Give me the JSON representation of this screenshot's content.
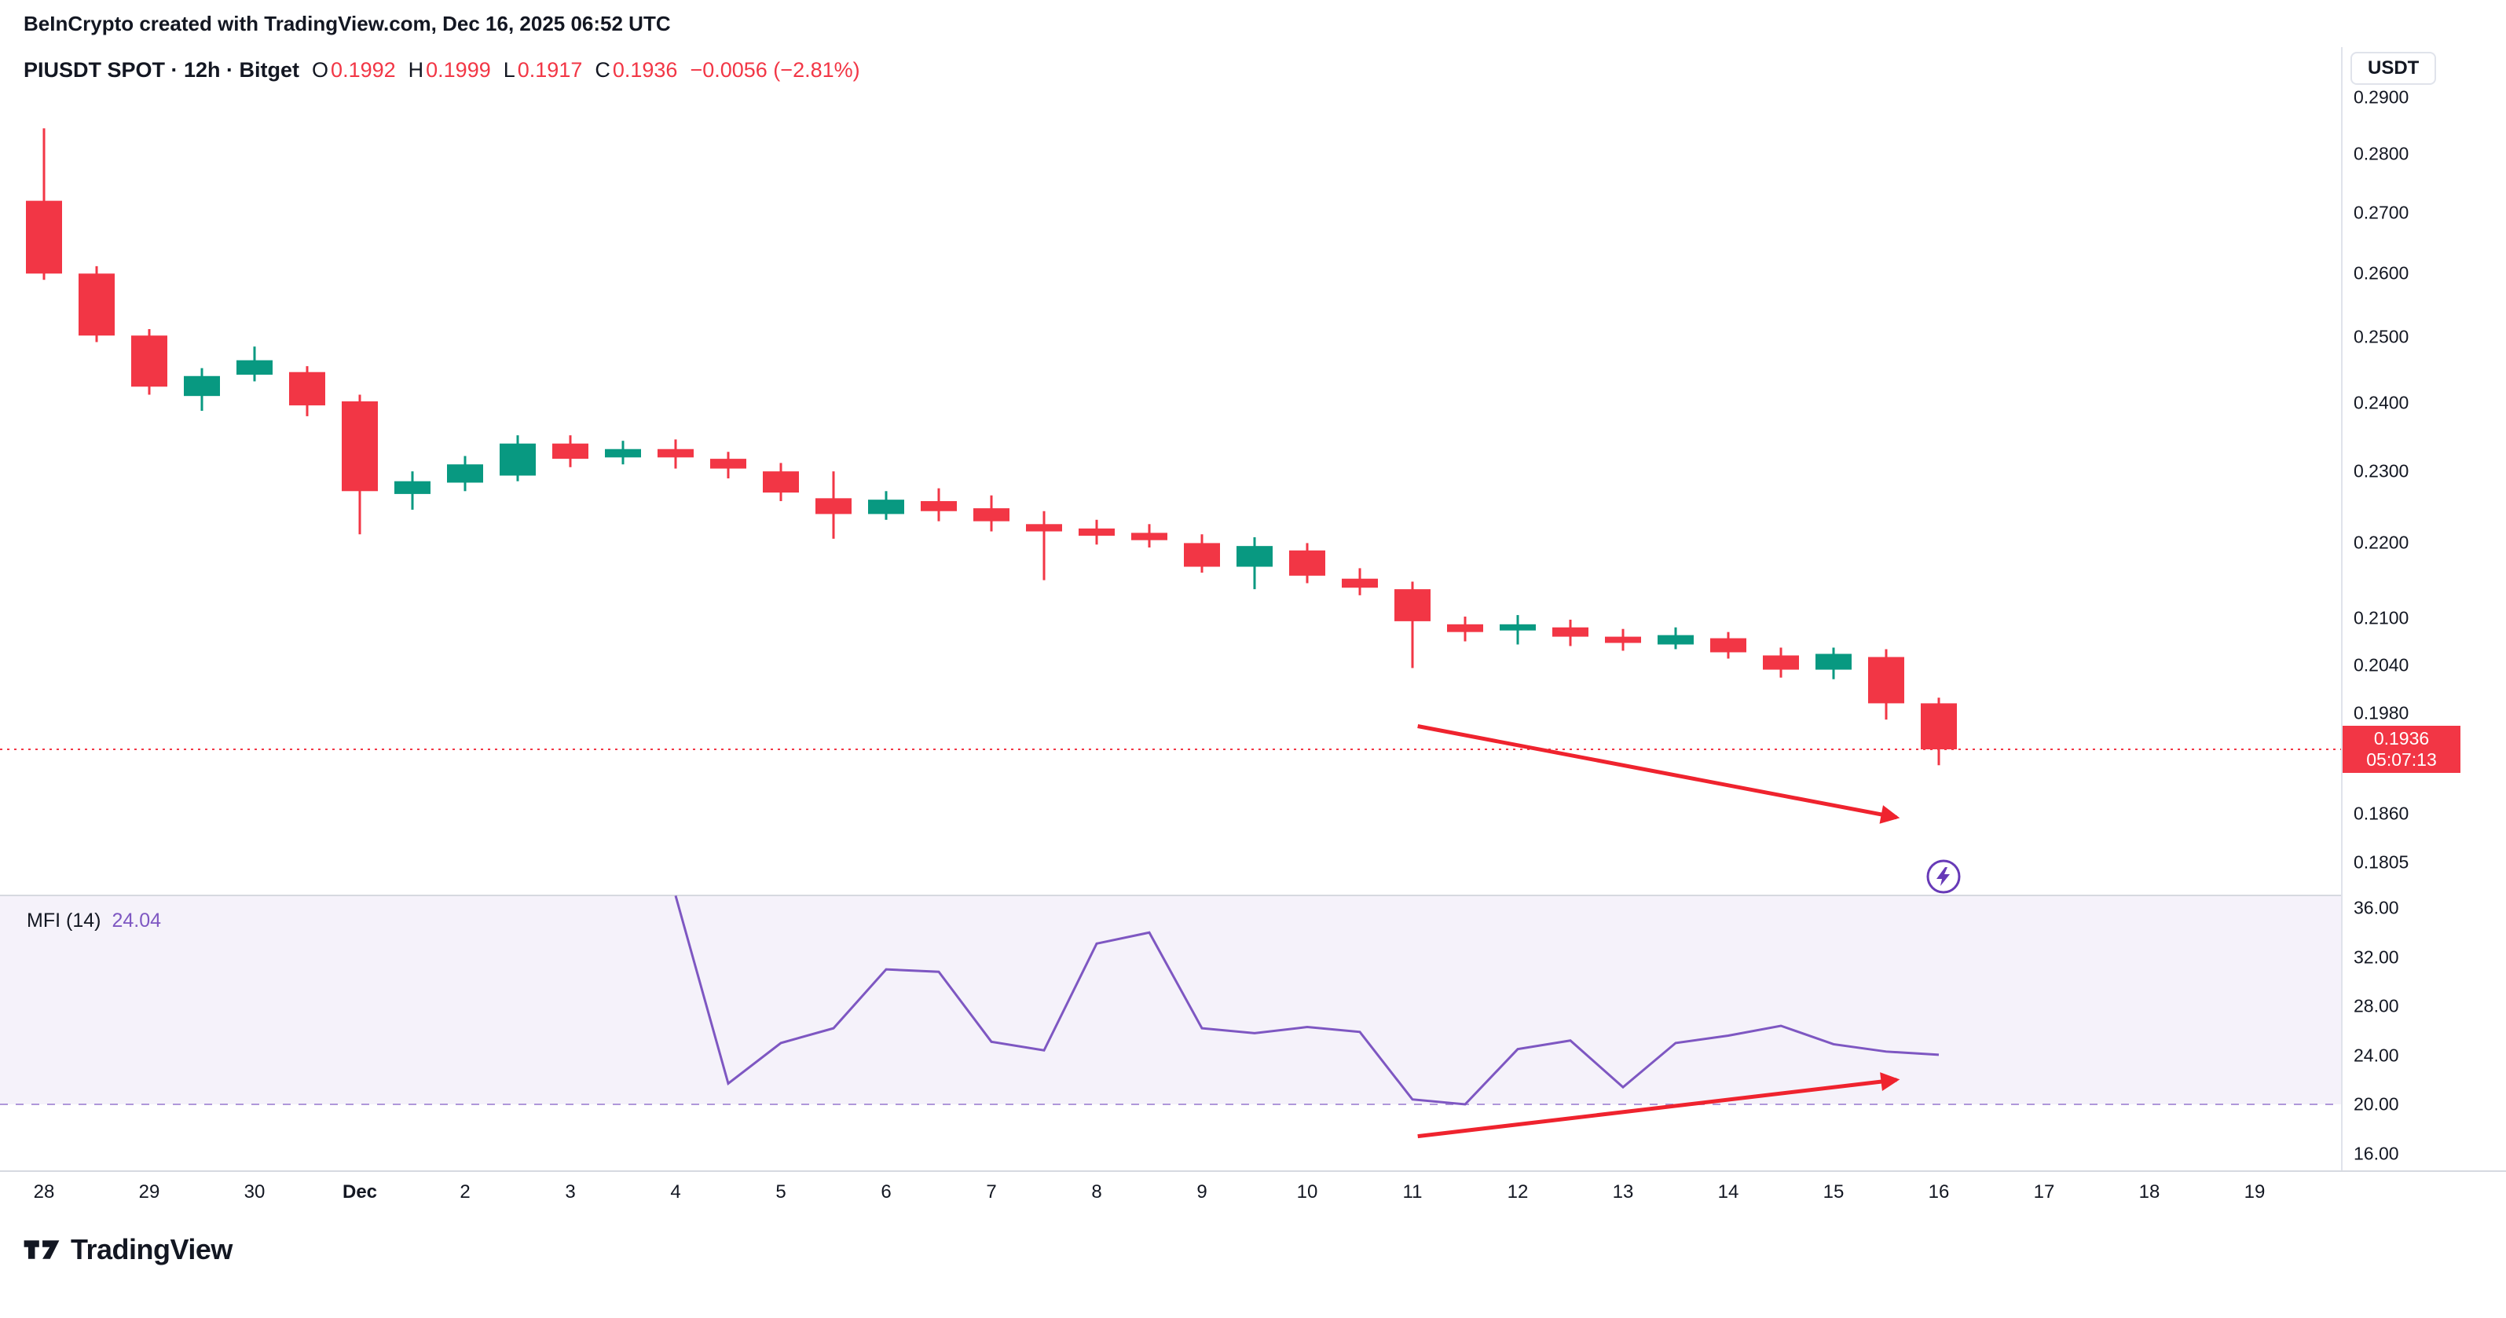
{
  "attribution": {
    "text": "BeInCrypto created with TradingView.com, Dec 16, 2025 06:52 UTC"
  },
  "legend": {
    "symbol": "PIUSDT SPOT · 12h · Bitget",
    "o_label": "O",
    "o": "0.1992",
    "h_label": "H",
    "h": "0.1999",
    "l_label": "L",
    "l": "0.1917",
    "c_label": "C",
    "c": "0.1936",
    "change": "−0.0056 (−2.81%)"
  },
  "mfi_legend": {
    "name": "MFI (14)",
    "value": "24.04"
  },
  "price_axis": {
    "unit": "USDT",
    "current_price": "0.1936",
    "countdown": "05:07:13"
  },
  "footer": {
    "logo_text": "TradingView"
  },
  "colors": {
    "up": "#089981",
    "down": "#f23645",
    "mfi_line": "#7e57c2",
    "mfi_band": "rgba(126,87,194,0.08)",
    "oversold_line": "#7e57c2",
    "arrow": "#ef232e",
    "price_line": "#f23645",
    "divider": "#d6d9e0"
  },
  "chart_data": {
    "type": "candlestick",
    "symbol": "PIUSDT",
    "exchange": "Bitget",
    "interval": "12h",
    "y_axis": {
      "type": "log",
      "ticks": [
        "0.2900",
        "0.2800",
        "0.2700",
        "0.2600",
        "0.2500",
        "0.2400",
        "0.2300",
        "0.2200",
        "0.2100",
        "0.2040",
        "0.1980",
        "0.1860",
        "0.1805"
      ]
    },
    "x_labels": [
      "28",
      "29",
      "30",
      "Dec",
      "2",
      "3",
      "4",
      "5",
      "6",
      "7",
      "8",
      "9",
      "10",
      "11",
      "12",
      "13",
      "14",
      "15",
      "16",
      "17",
      "18",
      "19"
    ],
    "bold_x_label": "Dec",
    "current_price": 0.1936,
    "candles": [
      {
        "t": "Nov 28 AM",
        "o": 0.272,
        "h": 0.2845,
        "l": 0.259,
        "c": 0.26
      },
      {
        "t": "Nov 28 PM",
        "o": 0.26,
        "h": 0.2612,
        "l": 0.2492,
        "c": 0.2502
      },
      {
        "t": "Nov 29 AM",
        "o": 0.2502,
        "h": 0.2512,
        "l": 0.2412,
        "c": 0.2424
      },
      {
        "t": "Nov 29 PM",
        "o": 0.241,
        "h": 0.2452,
        "l": 0.2388,
        "c": 0.244
      },
      {
        "t": "Nov 30 AM",
        "o": 0.2442,
        "h": 0.2485,
        "l": 0.2432,
        "c": 0.2464
      },
      {
        "t": "Nov 30 PM",
        "o": 0.2446,
        "h": 0.2455,
        "l": 0.238,
        "c": 0.2396
      },
      {
        "t": "Dec 1 AM",
        "o": 0.2402,
        "h": 0.2412,
        "l": 0.2212,
        "c": 0.2272
      },
      {
        "t": "Dec 1 PM",
        "o": 0.2268,
        "h": 0.23,
        "l": 0.2246,
        "c": 0.2286
      },
      {
        "t": "Dec 2 AM",
        "o": 0.2284,
        "h": 0.2322,
        "l": 0.2272,
        "c": 0.231
      },
      {
        "t": "Dec 2 PM",
        "o": 0.2294,
        "h": 0.2352,
        "l": 0.2286,
        "c": 0.234
      },
      {
        "t": "Dec 3 AM",
        "o": 0.234,
        "h": 0.2352,
        "l": 0.2306,
        "c": 0.2318
      },
      {
        "t": "Dec 3 PM",
        "o": 0.232,
        "h": 0.2344,
        "l": 0.231,
        "c": 0.2332
      },
      {
        "t": "Dec 4 AM",
        "o": 0.2332,
        "h": 0.2346,
        "l": 0.2304,
        "c": 0.232
      },
      {
        "t": "Dec 4 PM",
        "o": 0.2318,
        "h": 0.2328,
        "l": 0.229,
        "c": 0.2304
      },
      {
        "t": "Dec 5 AM",
        "o": 0.23,
        "h": 0.2312,
        "l": 0.2258,
        "c": 0.227
      },
      {
        "t": "Dec 5 PM",
        "o": 0.2262,
        "h": 0.23,
        "l": 0.2206,
        "c": 0.224
      },
      {
        "t": "Dec 6 AM",
        "o": 0.224,
        "h": 0.2272,
        "l": 0.2232,
        "c": 0.226
      },
      {
        "t": "Dec 6 PM",
        "o": 0.2258,
        "h": 0.2276,
        "l": 0.223,
        "c": 0.2244
      },
      {
        "t": "Dec 7 AM",
        "o": 0.2248,
        "h": 0.2266,
        "l": 0.2216,
        "c": 0.223
      },
      {
        "t": "Dec 7 PM",
        "o": 0.2226,
        "h": 0.2244,
        "l": 0.215,
        "c": 0.2216
      },
      {
        "t": "Dec 8 AM",
        "o": 0.222,
        "h": 0.2232,
        "l": 0.2198,
        "c": 0.221
      },
      {
        "t": "Dec 8 PM",
        "o": 0.2214,
        "h": 0.2226,
        "l": 0.2194,
        "c": 0.2204
      },
      {
        "t": "Dec 9 AM",
        "o": 0.22,
        "h": 0.2212,
        "l": 0.216,
        "c": 0.2168
      },
      {
        "t": "Dec 9 PM",
        "o": 0.2168,
        "h": 0.2208,
        "l": 0.2138,
        "c": 0.2196
      },
      {
        "t": "Dec 10 AM",
        "o": 0.219,
        "h": 0.22,
        "l": 0.2146,
        "c": 0.2156
      },
      {
        "t": "Dec 10 PM",
        "o": 0.2152,
        "h": 0.2166,
        "l": 0.213,
        "c": 0.214
      },
      {
        "t": "Dec 11 AM",
        "o": 0.2138,
        "h": 0.2148,
        "l": 0.2036,
        "c": 0.2096
      },
      {
        "t": "Dec 11 PM",
        "o": 0.2092,
        "h": 0.2102,
        "l": 0.207,
        "c": 0.2082
      },
      {
        "t": "Dec 12 AM",
        "o": 0.2084,
        "h": 0.2104,
        "l": 0.2066,
        "c": 0.2092
      },
      {
        "t": "Dec 12 PM",
        "o": 0.2088,
        "h": 0.2098,
        "l": 0.2064,
        "c": 0.2076
      },
      {
        "t": "Dec 13 AM",
        "o": 0.2076,
        "h": 0.2086,
        "l": 0.2058,
        "c": 0.2068
      },
      {
        "t": "Dec 13 PM",
        "o": 0.2066,
        "h": 0.2088,
        "l": 0.206,
        "c": 0.2078
      },
      {
        "t": "Dec 14 AM",
        "o": 0.2074,
        "h": 0.2082,
        "l": 0.2048,
        "c": 0.2056
      },
      {
        "t": "Dec 14 PM",
        "o": 0.2052,
        "h": 0.2062,
        "l": 0.2024,
        "c": 0.2034
      },
      {
        "t": "Dec 15 AM",
        "o": 0.2034,
        "h": 0.2062,
        "l": 0.2022,
        "c": 0.2054
      },
      {
        "t": "Dec 15 PM",
        "o": 0.205,
        "h": 0.206,
        "l": 0.1972,
        "c": 0.1992
      },
      {
        "t": "Dec 16 AM",
        "o": 0.1992,
        "h": 0.1999,
        "l": 0.1917,
        "c": 0.1936
      }
    ],
    "mfi": {
      "label": "MFI (14)",
      "value": 24.04,
      "oversold": 20,
      "ticks": [
        "36.00",
        "32.00",
        "28.00",
        "24.00",
        "20.00",
        "16.00"
      ],
      "start_index": 12,
      "values": [
        37.0,
        21.7,
        25.0,
        26.2,
        31.0,
        30.8,
        25.1,
        24.4,
        33.1,
        34.0,
        26.2,
        25.8,
        26.3,
        25.9,
        20.4,
        20.0,
        24.5,
        25.2,
        21.4,
        25.0,
        25.6,
        26.4,
        24.9,
        24.3,
        24.04
      ]
    },
    "annotations": [
      {
        "type": "arrow",
        "pane": "price",
        "from_index": 26.1,
        "from": 0.1964,
        "to_index": 35.2,
        "to": 0.1856
      },
      {
        "type": "arrow",
        "pane": "mfi",
        "from_index": 26.1,
        "from": 17.4,
        "to_index": 35.2,
        "to": 22.0
      }
    ]
  }
}
